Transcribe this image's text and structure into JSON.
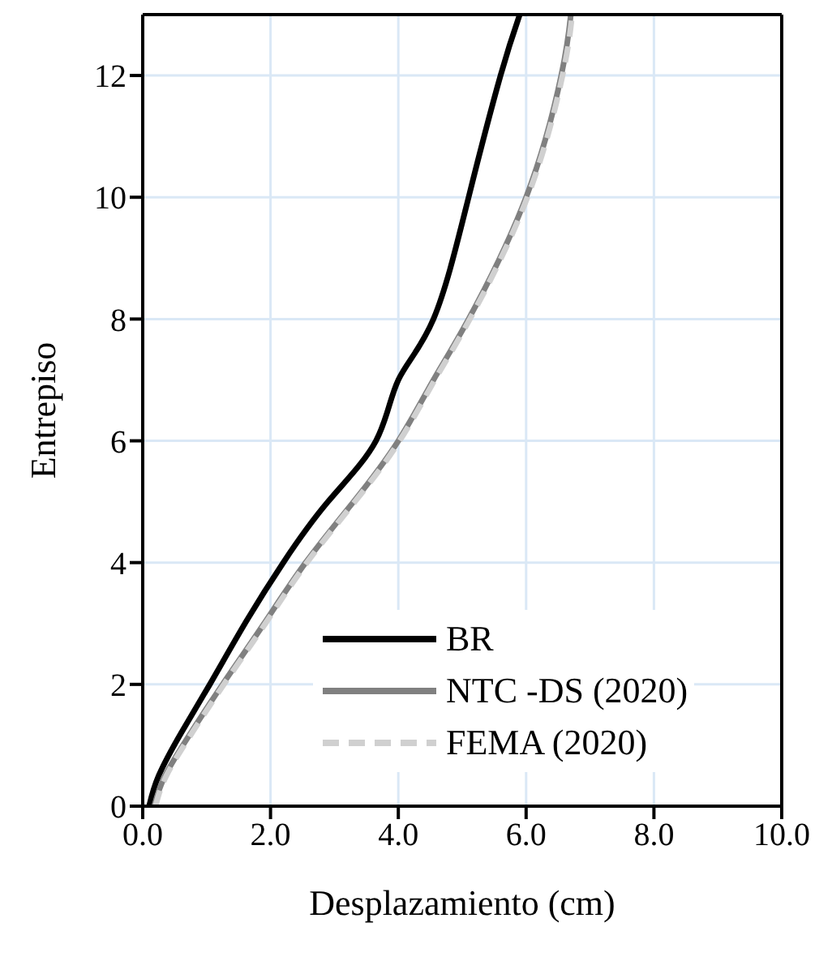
{
  "chart_data": {
    "type": "line",
    "xlabel": "Desplazamiento (cm)",
    "ylabel": "Entrepiso",
    "xlim": [
      0,
      10
    ],
    "xticks": [
      {
        "value": 0,
        "label": "0.0"
      },
      {
        "value": 2,
        "label": "2.0"
      },
      {
        "value": 4,
        "label": "4.0"
      },
      {
        "value": 6,
        "label": "6.0"
      },
      {
        "value": 8,
        "label": "8.0"
      },
      {
        "value": 10,
        "label": "10.0"
      }
    ],
    "ylim": [
      0,
      13
    ],
    "yticks": [
      0,
      2,
      4,
      6,
      8,
      10,
      12
    ],
    "grid": true,
    "legend": "bottom right",
    "marker": "none",
    "series": [
      {
        "name": "BR",
        "color": "#000000",
        "line_style": "solid",
        "x": [
          0.1,
          0.25,
          0.6,
          1.05,
          1.6,
          2.2,
          2.9,
          3.65,
          4.0,
          4.55,
          5.1,
          5.6,
          5.9
        ],
        "values": [
          0,
          0.5,
          1.2,
          2,
          3,
          4,
          5,
          6,
          7,
          8,
          10,
          12,
          13
        ]
      },
      {
        "name": "NTC -DS (2020)",
        "color": "#808080",
        "line_style": "solid",
        "x": [
          0.18,
          0.35,
          0.75,
          1.25,
          1.9,
          2.55,
          3.3,
          4.0,
          4.55,
          5.1,
          6.0,
          6.55,
          6.7
        ],
        "values": [
          0,
          0.5,
          1.2,
          2,
          3,
          4,
          5,
          6,
          7,
          8,
          10,
          12,
          13
        ]
      },
      {
        "name": "FEMA (2020)",
        "color": "#d0d0d0",
        "line_style": "dashed",
        "x": [
          0.2,
          0.37,
          0.77,
          1.27,
          1.92,
          2.57,
          3.32,
          4.02,
          4.57,
          5.12,
          6.02,
          6.57,
          6.72
        ],
        "values": [
          0,
          0.5,
          1.2,
          2,
          3,
          4,
          5,
          6,
          7,
          8,
          10,
          12,
          13
        ]
      }
    ]
  }
}
